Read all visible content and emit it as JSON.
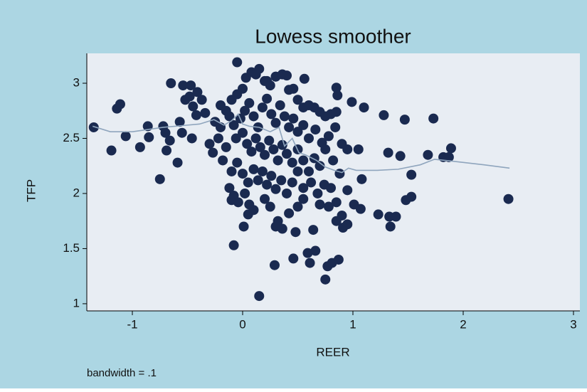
{
  "chart_data": {
    "type": "scatter",
    "title": "Lowess smoother",
    "xlabel": "REER",
    "ylabel": "TFP",
    "note": "bandwidth = .1",
    "xlim": [
      -1.413,
      3.058
    ],
    "xticks": [
      -1,
      0,
      1,
      2,
      3
    ],
    "ylim": [
      0.935,
      3.271
    ],
    "yticks": [
      1,
      1.5,
      2,
      2.5,
      3
    ],
    "series": [
      {
        "type": "scatter",
        "color": "#1a2a50",
        "x": [
          -1.35,
          -1.19,
          -1.14,
          -1.11,
          -1.06,
          -0.93,
          -0.86,
          -0.85,
          -0.75,
          -0.72,
          -0.7,
          -0.69,
          -0.66,
          -0.65,
          -0.59,
          -0.57,
          -0.55,
          -0.54,
          -0.47,
          -0.52,
          -0.48,
          -0.45,
          -0.41,
          -0.37,
          -0.46,
          -0.42,
          -0.34,
          -0.27,
          -0.05,
          0.12,
          0.22,
          0.3,
          0.36,
          0.56,
          0.42,
          0.85,
          0.86,
          0.99,
          1.1,
          1.28,
          1.47,
          1.73,
          1.32,
          1.43,
          1.68,
          1.82,
          1.87,
          1.89,
          1.53,
          1.08,
          0.95,
          2.41,
          1.53,
          1.48,
          1.23,
          1.33,
          1.39,
          1.34,
          1.07,
          1.01,
          0.95,
          0.91,
          0.64,
          0.59,
          0.66,
          0.61,
          0.46,
          0.29,
          0.48,
          0.77,
          0.81,
          0.87,
          0.75,
          0.15,
          -0.08,
          0.01,
          0.05,
          -0.1,
          -0.2,
          -0.15,
          -0.1,
          -0.05,
          0,
          0.03,
          0.08,
          0.12,
          0.15,
          0.2,
          0.25,
          0.3,
          0.36,
          0.4,
          0.46,
          0.5,
          0.55,
          0.6,
          0.65,
          0.7,
          0.75,
          0.8,
          0.85,
          -0.25,
          -0.2,
          -0.12,
          -0.08,
          -0.02,
          0.02,
          0.06,
          0.1,
          0.14,
          0.18,
          0.22,
          0.26,
          0.3,
          0.34,
          0.38,
          0.42,
          0.46,
          0.5,
          0.55,
          0.6,
          0.66,
          0.72,
          0.78,
          0.84,
          0.9,
          -0.3,
          -0.22,
          -0.15,
          -0.06,
          0,
          0.04,
          0.08,
          0.12,
          0.16,
          0.2,
          0.24,
          0.28,
          0.32,
          0.36,
          0.4,
          0.45,
          0.5,
          0.55,
          0.6,
          0.65,
          0.7,
          0.75,
          0.82,
          0.88,
          0.95,
          1.05,
          -0.18,
          -0.1,
          -0.05,
          0,
          0.05,
          0.1,
          0.14,
          0.18,
          0.22,
          0.26,
          0.3,
          0.35,
          0.4,
          0.45,
          0.5,
          0.55,
          0.62,
          0.68,
          0.74,
          0.8,
          -0.12,
          -0.08,
          -0.04,
          0.02,
          0.06,
          0.1,
          0.2,
          0.25,
          0.32,
          0.36,
          0.3,
          0.42,
          0.5,
          0.55,
          0.7,
          0.78,
          0.85,
          0.9,
          0.85
        ],
        "values": [
          2.6,
          2.39,
          2.77,
          2.81,
          2.52,
          2.42,
          2.61,
          2.51,
          2.13,
          2.61,
          2.55,
          2.39,
          2.48,
          3.0,
          2.28,
          2.65,
          2.55,
          2.98,
          2.98,
          2.85,
          2.88,
          2.79,
          2.92,
          2.85,
          2.5,
          2.71,
          2.73,
          2.37,
          3.19,
          3.08,
          3.02,
          3.06,
          3.08,
          3.04,
          2.94,
          2.96,
          2.89,
          2.83,
          2.78,
          2.71,
          2.67,
          2.68,
          2.37,
          2.34,
          2.35,
          2.33,
          2.33,
          2.41,
          2.17,
          2.13,
          2.03,
          1.95,
          1.97,
          1.94,
          1.81,
          1.79,
          1.79,
          1.7,
          1.86,
          1.9,
          1.72,
          1.69,
          1.67,
          1.46,
          1.48,
          1.37,
          1.41,
          1.35,
          1.65,
          1.34,
          1.37,
          1.4,
          1.22,
          1.07,
          1.53,
          1.7,
          1.81,
          1.94,
          2.8,
          2.75,
          2.85,
          2.9,
          2.95,
          3.05,
          3.1,
          3.08,
          3.13,
          3.02,
          2.98,
          3.06,
          3.08,
          3.07,
          2.95,
          2.85,
          2.78,
          2.8,
          2.78,
          2.74,
          2.7,
          2.72,
          2.74,
          2.65,
          2.6,
          2.7,
          2.62,
          2.68,
          2.75,
          2.82,
          2.7,
          2.6,
          2.78,
          2.86,
          2.72,
          2.64,
          2.8,
          2.7,
          2.6,
          2.68,
          2.56,
          2.62,
          2.5,
          2.58,
          2.46,
          2.52,
          2.6,
          2.45,
          2.45,
          2.5,
          2.42,
          2.5,
          2.55,
          2.45,
          2.38,
          2.5,
          2.42,
          2.35,
          2.48,
          2.4,
          2.3,
          2.44,
          2.36,
          2.28,
          2.4,
          2.3,
          2.2,
          2.32,
          2.25,
          2.4,
          2.3,
          2.18,
          2.4,
          2.4,
          2.3,
          2.2,
          2.28,
          2.18,
          2.1,
          2.22,
          2.12,
          2.2,
          2.08,
          2.16,
          2.04,
          2.12,
          2.0,
          2.1,
          2.2,
          2.05,
          2.1,
          2.0,
          2.08,
          2.05,
          2.05,
          1.98,
          1.92,
          2.0,
          1.9,
          1.85,
          1.95,
          1.88,
          1.75,
          1.68,
          1.7,
          1.82,
          1.88,
          1.95,
          1.9,
          1.88,
          1.92,
          1.8,
          1.75
        ]
      },
      {
        "type": "line",
        "color": "#8fa5bd",
        "x": [
          -1.36,
          -1.2,
          -1.0,
          -0.72,
          -0.39,
          -0.26,
          -0.17,
          -0.1,
          -0.04,
          0.0,
          0.06,
          0.15,
          0.25,
          0.33,
          0.38,
          0.45,
          0.51,
          0.57,
          0.67,
          0.75,
          0.83,
          0.9,
          0.96,
          1.03,
          1.22,
          1.41,
          1.61,
          1.74,
          1.93,
          2.19,
          2.42
        ],
        "values": [
          2.61,
          2.56,
          2.56,
          2.6,
          2.63,
          2.67,
          2.62,
          2.66,
          2.72,
          2.63,
          2.61,
          2.6,
          2.56,
          2.6,
          2.43,
          2.5,
          2.37,
          2.35,
          2.3,
          2.24,
          2.21,
          2.19,
          2.23,
          2.21,
          2.21,
          2.22,
          2.26,
          2.31,
          2.29,
          2.26,
          2.23
        ]
      }
    ]
  }
}
